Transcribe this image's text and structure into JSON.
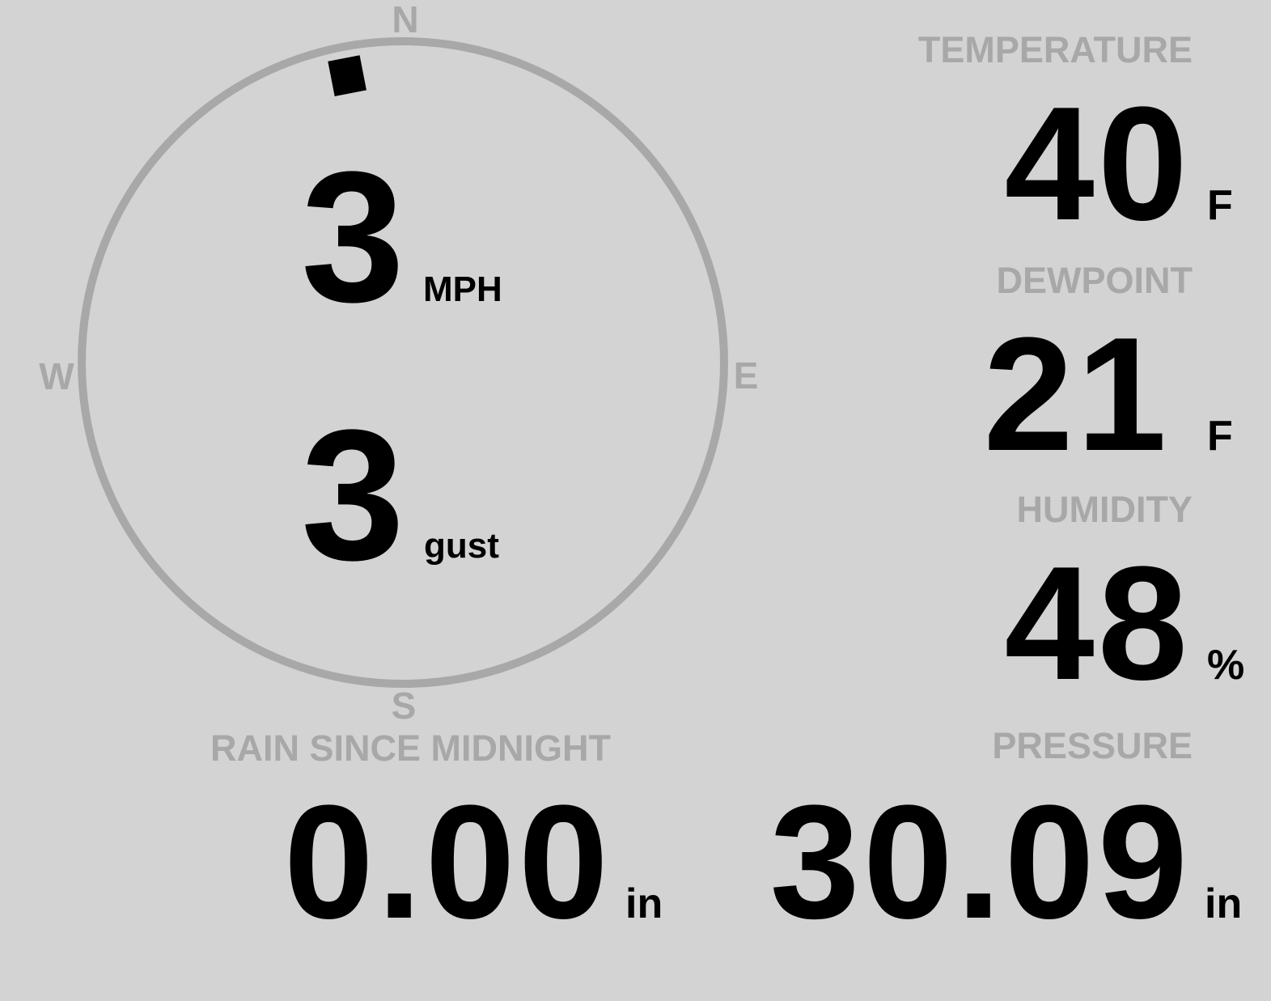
{
  "colors": {
    "background": "#d3d3d3",
    "label": "#a8a8a8",
    "value": "#000000",
    "ring": "#a8a8a8",
    "marker": "#000000"
  },
  "compass": {
    "n": "N",
    "e": "E",
    "s": "S",
    "w": "W"
  },
  "wind": {
    "direction_deg": 349,
    "speed": "3",
    "speed_unit": "MPH",
    "gust": "3",
    "gust_unit": "gust"
  },
  "temperature": {
    "label": "TEMPERATURE",
    "value": "40",
    "unit": "F"
  },
  "dewpoint": {
    "label": "DEWPOINT",
    "value": "21",
    "unit": "F"
  },
  "humidity": {
    "label": "HUMIDITY",
    "value": "48",
    "unit": "%"
  },
  "rain": {
    "label": "RAIN SINCE MIDNIGHT",
    "value": "0.00",
    "unit": "in"
  },
  "pressure": {
    "label": "PRESSURE",
    "value": "30.09",
    "unit": "in"
  }
}
